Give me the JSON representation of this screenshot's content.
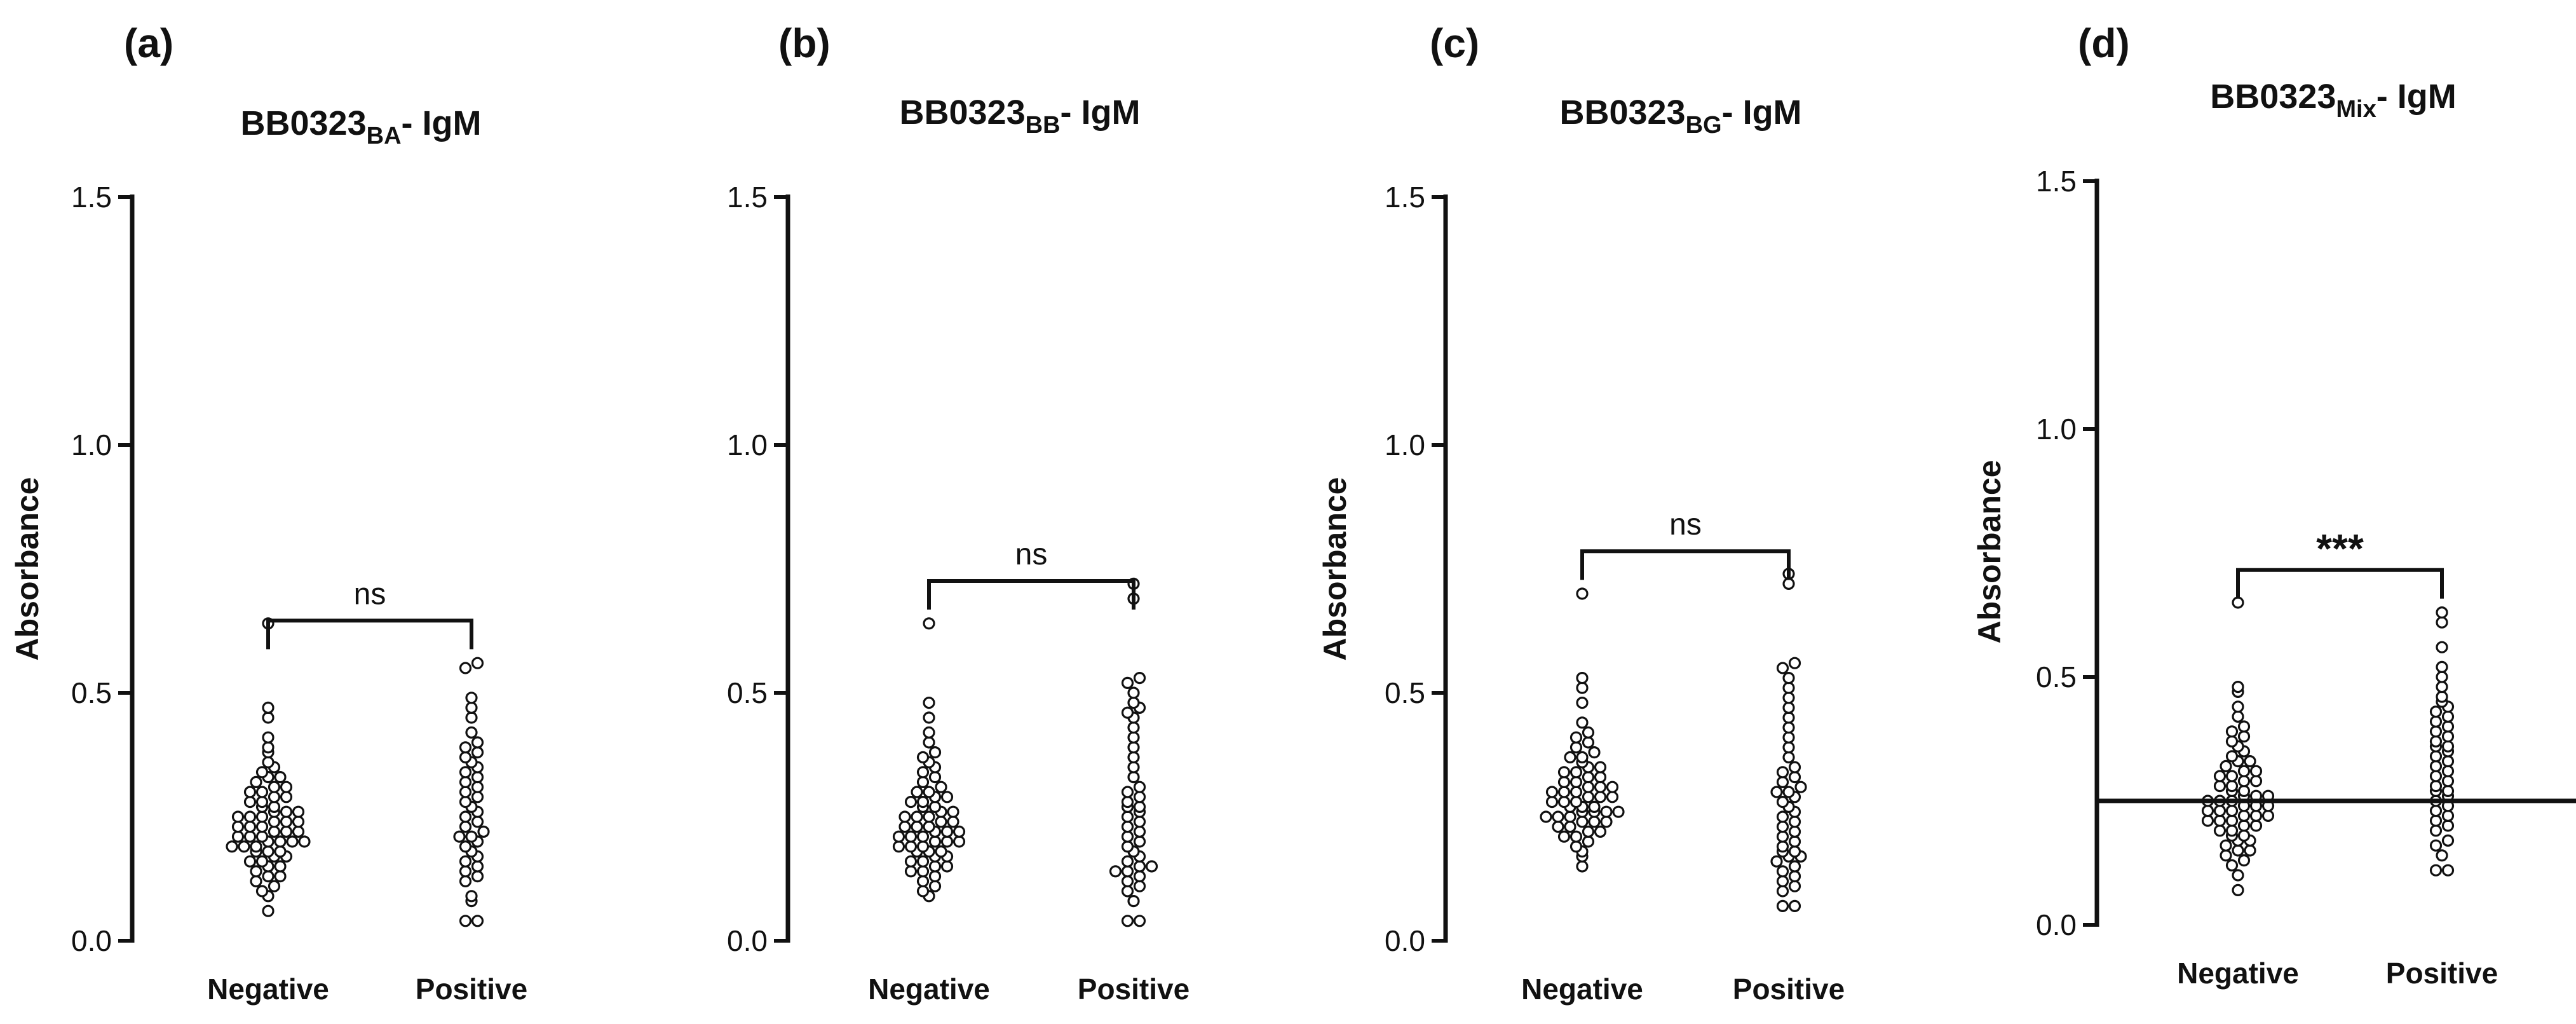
{
  "chart_data": [
    {
      "type": "scatter",
      "panel_label": "(a)",
      "title_main": "BB0323",
      "title_sub": "BA",
      "title_suffix": "- IgM",
      "ylabel": "Absorbance",
      "ylim": [
        0,
        1.5
      ],
      "yticks": [
        "0.0",
        "0.5",
        "1.0",
        "1.5"
      ],
      "categories": [
        "Negative",
        "Positive"
      ],
      "significance": "ns",
      "median_line": null,
      "series": [
        {
          "name": "Negative",
          "values": [
            0.06,
            0.09,
            0.1,
            0.11,
            0.12,
            0.13,
            0.13,
            0.14,
            0.15,
            0.15,
            0.16,
            0.16,
            0.17,
            0.17,
            0.18,
            0.18,
            0.18,
            0.19,
            0.19,
            0.19,
            0.2,
            0.2,
            0.2,
            0.2,
            0.21,
            0.21,
            0.21,
            0.22,
            0.22,
            0.22,
            0.23,
            0.23,
            0.23,
            0.24,
            0.24,
            0.24,
            0.25,
            0.25,
            0.25,
            0.26,
            0.26,
            0.26,
            0.27,
            0.27,
            0.28,
            0.28,
            0.29,
            0.29,
            0.3,
            0.3,
            0.31,
            0.31,
            0.32,
            0.33,
            0.33,
            0.34,
            0.35,
            0.36,
            0.38,
            0.39,
            0.41,
            0.45,
            0.47,
            0.64
          ]
        },
        {
          "name": "Positive",
          "values": [
            0.04,
            0.04,
            0.08,
            0.09,
            0.12,
            0.13,
            0.14,
            0.15,
            0.16,
            0.17,
            0.18,
            0.19,
            0.2,
            0.21,
            0.21,
            0.22,
            0.23,
            0.24,
            0.25,
            0.26,
            0.27,
            0.28,
            0.29,
            0.3,
            0.31,
            0.32,
            0.33,
            0.34,
            0.35,
            0.36,
            0.37,
            0.38,
            0.39,
            0.4,
            0.42,
            0.45,
            0.47,
            0.49,
            0.55,
            0.56
          ]
        }
      ]
    },
    {
      "type": "scatter",
      "panel_label": "(b)",
      "title_main": "BB0323",
      "title_sub": "BB",
      "title_suffix": "- IgM",
      "ylabel": "",
      "ylim": [
        0,
        1.5
      ],
      "yticks": [
        "0.0",
        "0.5",
        "1.0",
        "1.5"
      ],
      "categories": [
        "Negative",
        "Positive"
      ],
      "significance": "ns",
      "median_line": null,
      "series": [
        {
          "name": "Negative",
          "values": [
            0.09,
            0.1,
            0.11,
            0.12,
            0.13,
            0.14,
            0.14,
            0.15,
            0.15,
            0.16,
            0.16,
            0.17,
            0.17,
            0.18,
            0.18,
            0.18,
            0.19,
            0.19,
            0.19,
            0.2,
            0.2,
            0.2,
            0.21,
            0.21,
            0.21,
            0.22,
            0.22,
            0.22,
            0.23,
            0.23,
            0.23,
            0.24,
            0.24,
            0.25,
            0.25,
            0.25,
            0.26,
            0.26,
            0.27,
            0.27,
            0.28,
            0.28,
            0.29,
            0.29,
            0.3,
            0.3,
            0.31,
            0.32,
            0.33,
            0.34,
            0.35,
            0.36,
            0.37,
            0.38,
            0.4,
            0.42,
            0.45,
            0.48,
            0.64
          ]
        },
        {
          "name": "Positive",
          "values": [
            0.04,
            0.04,
            0.08,
            0.1,
            0.11,
            0.12,
            0.13,
            0.14,
            0.14,
            0.15,
            0.15,
            0.16,
            0.17,
            0.18,
            0.19,
            0.2,
            0.21,
            0.22,
            0.23,
            0.24,
            0.25,
            0.26,
            0.27,
            0.27,
            0.28,
            0.29,
            0.3,
            0.31,
            0.33,
            0.35,
            0.37,
            0.39,
            0.41,
            0.43,
            0.45,
            0.46,
            0.47,
            0.48,
            0.5,
            0.52,
            0.53,
            0.69,
            0.72
          ]
        }
      ]
    },
    {
      "type": "scatter",
      "panel_label": "(c)",
      "title_main": "BB0323",
      "title_sub": "BG",
      "title_suffix": "- IgM",
      "ylabel": "Absorbance",
      "ylim": [
        0,
        1.5
      ],
      "yticks": [
        "0.0",
        "0.5",
        "1.0",
        "1.5"
      ],
      "categories": [
        "Negative",
        "Positive"
      ],
      "significance": "ns",
      "median_line": null,
      "series": [
        {
          "name": "Negative",
          "values": [
            0.15,
            0.17,
            0.18,
            0.19,
            0.2,
            0.21,
            0.21,
            0.22,
            0.22,
            0.23,
            0.23,
            0.24,
            0.24,
            0.24,
            0.25,
            0.25,
            0.25,
            0.26,
            0.26,
            0.26,
            0.26,
            0.27,
            0.27,
            0.27,
            0.28,
            0.28,
            0.28,
            0.29,
            0.29,
            0.29,
            0.3,
            0.3,
            0.3,
            0.31,
            0.31,
            0.31,
            0.32,
            0.32,
            0.33,
            0.33,
            0.34,
            0.34,
            0.35,
            0.35,
            0.36,
            0.37,
            0.37,
            0.38,
            0.39,
            0.4,
            0.41,
            0.42,
            0.44,
            0.48,
            0.51,
            0.53,
            0.7
          ]
        },
        {
          "name": "Positive",
          "values": [
            0.07,
            0.07,
            0.1,
            0.11,
            0.12,
            0.13,
            0.14,
            0.15,
            0.16,
            0.17,
            0.17,
            0.18,
            0.18,
            0.19,
            0.2,
            0.21,
            0.22,
            0.23,
            0.24,
            0.25,
            0.26,
            0.27,
            0.28,
            0.29,
            0.3,
            0.3,
            0.31,
            0.32,
            0.33,
            0.34,
            0.35,
            0.37,
            0.39,
            0.41,
            0.43,
            0.45,
            0.47,
            0.49,
            0.51,
            0.53,
            0.55,
            0.56,
            0.72,
            0.74
          ]
        }
      ]
    },
    {
      "type": "scatter",
      "panel_label": "(d)",
      "title_main": "BB0323",
      "title_sub": "Mix",
      "title_suffix": "- IgM",
      "ylabel": "Absorbance",
      "ylim": [
        0,
        1.5
      ],
      "yticks": [
        "0.0",
        "0.5",
        "1.0",
        "1.5"
      ],
      "categories": [
        "Negative",
        "Positive"
      ],
      "significance": "***",
      "median_line": 0.25,
      "series": [
        {
          "name": "Negative",
          "values": [
            0.07,
            0.1,
            0.12,
            0.13,
            0.14,
            0.15,
            0.15,
            0.16,
            0.17,
            0.17,
            0.18,
            0.18,
            0.19,
            0.19,
            0.2,
            0.2,
            0.21,
            0.21,
            0.21,
            0.22,
            0.22,
            0.22,
            0.23,
            0.23,
            0.23,
            0.24,
            0.24,
            0.24,
            0.25,
            0.25,
            0.25,
            0.26,
            0.26,
            0.26,
            0.27,
            0.27,
            0.28,
            0.28,
            0.29,
            0.29,
            0.3,
            0.3,
            0.31,
            0.31,
            0.32,
            0.33,
            0.33,
            0.34,
            0.35,
            0.36,
            0.37,
            0.38,
            0.39,
            0.4,
            0.42,
            0.44,
            0.47,
            0.48,
            0.65
          ]
        },
        {
          "name": "Positive",
          "values": [
            0.11,
            0.11,
            0.14,
            0.16,
            0.17,
            0.19,
            0.2,
            0.21,
            0.22,
            0.23,
            0.24,
            0.25,
            0.26,
            0.27,
            0.27,
            0.28,
            0.29,
            0.3,
            0.31,
            0.32,
            0.33,
            0.34,
            0.35,
            0.36,
            0.36,
            0.37,
            0.38,
            0.39,
            0.4,
            0.41,
            0.42,
            0.43,
            0.44,
            0.45,
            0.46,
            0.48,
            0.5,
            0.52,
            0.56,
            0.61,
            0.63
          ]
        }
      ]
    }
  ]
}
